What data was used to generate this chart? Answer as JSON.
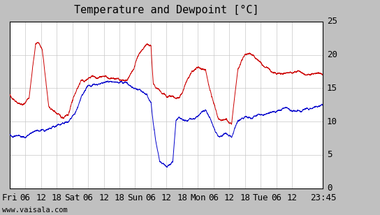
{
  "title": "Temperature and Dewpoint [°C]",
  "ylim": [
    0,
    25
  ],
  "xlabel_ticks_labels": [
    "Fri",
    "06",
    "12",
    "18",
    "Sat",
    "06",
    "12",
    "18",
    "Sun",
    "06",
    "12",
    "18",
    "Mon",
    "06",
    "12",
    "18",
    "Tue",
    "06",
    "12",
    "23:45"
  ],
  "watermark": "www.vaisala.com",
  "temp_color": "#cc0000",
  "dewp_color": "#0000cc",
  "bg_color": "#c0c0c0",
  "plot_bg_color": "#ffffff",
  "grid_color": "#c8c8c8",
  "title_fontsize": 11,
  "tick_fontsize": 9,
  "line_width": 0.7,
  "n_points": 5760,
  "temp_keypoints": [
    [
      0,
      14.0
    ],
    [
      240,
      12.5
    ],
    [
      360,
      13.5
    ],
    [
      480,
      21.5
    ],
    [
      540,
      22.0
    ],
    [
      600,
      21.0
    ],
    [
      720,
      12.5
    ],
    [
      840,
      11.5
    ],
    [
      960,
      10.0
    ],
    [
      1080,
      10.2
    ],
    [
      1200,
      13.0
    ],
    [
      1320,
      15.0
    ],
    [
      1440,
      15.0
    ],
    [
      1560,
      15.0
    ],
    [
      1680,
      14.8
    ],
    [
      1800,
      14.5
    ],
    [
      1920,
      14.5
    ],
    [
      2040,
      14.2
    ],
    [
      2160,
      14.3
    ],
    [
      2280,
      16.0
    ],
    [
      2400,
      18.5
    ],
    [
      2520,
      19.5
    ],
    [
      2600,
      19.2
    ],
    [
      2640,
      13.5
    ],
    [
      2760,
      12.0
    ],
    [
      2880,
      11.5
    ],
    [
      3000,
      11.5
    ],
    [
      3120,
      11.5
    ],
    [
      3240,
      14.0
    ],
    [
      3360,
      15.5
    ],
    [
      3480,
      16.0
    ],
    [
      3600,
      15.5
    ],
    [
      3720,
      11.0
    ],
    [
      3840,
      8.5
    ],
    [
      3960,
      8.5
    ],
    [
      4080,
      8.0
    ],
    [
      4200,
      16.5
    ],
    [
      4320,
      19.0
    ],
    [
      4440,
      19.5
    ],
    [
      4560,
      18.5
    ],
    [
      4680,
      17.5
    ],
    [
      4800,
      17.0
    ],
    [
      5040,
      16.5
    ],
    [
      5760,
      17.0
    ]
  ],
  "dewp_keypoints": [
    [
      0,
      8.0
    ],
    [
      240,
      7.5
    ],
    [
      480,
      8.0
    ],
    [
      720,
      8.5
    ],
    [
      960,
      9.0
    ],
    [
      1080,
      9.2
    ],
    [
      1200,
      10.5
    ],
    [
      1320,
      13.0
    ],
    [
      1440,
      14.0
    ],
    [
      1560,
      14.0
    ],
    [
      1680,
      14.2
    ],
    [
      1800,
      14.2
    ],
    [
      1920,
      14.0
    ],
    [
      2040,
      14.0
    ],
    [
      2160,
      14.0
    ],
    [
      2280,
      13.5
    ],
    [
      2400,
      13.5
    ],
    [
      2520,
      13.0
    ],
    [
      2600,
      12.0
    ],
    [
      2640,
      9.0
    ],
    [
      2700,
      6.0
    ],
    [
      2760,
      3.5
    ],
    [
      2820,
      3.2
    ],
    [
      2880,
      3.0
    ],
    [
      2940,
      3.2
    ],
    [
      3000,
      3.5
    ],
    [
      3060,
      10.0
    ],
    [
      3120,
      10.5
    ],
    [
      3240,
      10.5
    ],
    [
      3360,
      11.0
    ],
    [
      3480,
      11.5
    ],
    [
      3600,
      12.5
    ],
    [
      3720,
      10.5
    ],
    [
      3840,
      8.0
    ],
    [
      3960,
      8.5
    ],
    [
      4080,
      8.0
    ],
    [
      4200,
      10.5
    ],
    [
      4320,
      11.0
    ],
    [
      4440,
      11.0
    ],
    [
      4560,
      11.5
    ],
    [
      4680,
      11.5
    ],
    [
      4800,
      12.0
    ],
    [
      5040,
      12.0
    ],
    [
      5760,
      12.5
    ]
  ]
}
